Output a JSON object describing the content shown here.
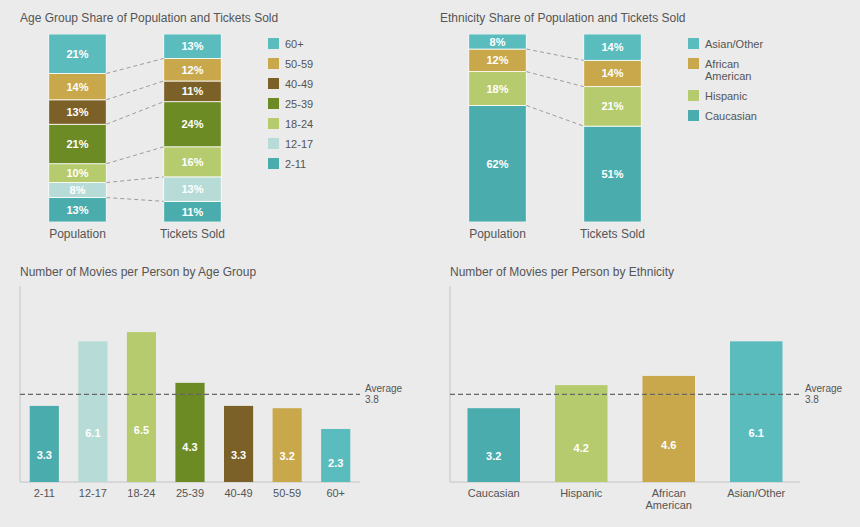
{
  "chart_data": [
    {
      "type": "bar",
      "stacked": true,
      "title": "Age Group Share of Population and Tickets Sold",
      "categories": [
        "Population",
        "Tickets Sold"
      ],
      "series": [
        {
          "name": "60+",
          "color": "#5bbcbe",
          "values": [
            21,
            13
          ],
          "value_labels": [
            "21%",
            "13%"
          ]
        },
        {
          "name": "50-59",
          "color": "#c8a84b",
          "values": [
            14,
            12
          ],
          "value_labels": [
            "14%",
            "12%"
          ]
        },
        {
          "name": "40-49",
          "color": "#7b6128",
          "values": [
            13,
            11
          ],
          "value_labels": [
            "13%",
            "11%"
          ]
        },
        {
          "name": "25-39",
          "color": "#6d8b25",
          "values": [
            21,
            24
          ],
          "value_labels": [
            "21%",
            "24%"
          ]
        },
        {
          "name": "18-24",
          "color": "#b5cb6d",
          "values": [
            10,
            16
          ],
          "value_labels": [
            "10%",
            "16%"
          ]
        },
        {
          "name": "12-17",
          "color": "#b7dbd6",
          "values": [
            8,
            13
          ],
          "value_labels": [
            "8%",
            "13%"
          ]
        },
        {
          "name": "2-11",
          "color": "#4aacac",
          "values": [
            13,
            11
          ],
          "value_labels": [
            "13%",
            "11%"
          ]
        }
      ],
      "ylim": [
        0,
        100
      ],
      "data_labels": true,
      "tick_labels": "x",
      "legend": "right",
      "grid": false
    },
    {
      "type": "bar",
      "stacked": true,
      "title": "Ethnicity Share of Population and Tickets Sold",
      "categories": [
        "Population",
        "Tickets Sold"
      ],
      "series": [
        {
          "name": "Asian/Other",
          "color": "#5bbcbe",
          "values": [
            8,
            14
          ],
          "value_labels": [
            "8%",
            "14%"
          ]
        },
        {
          "name": "African\nAmerican",
          "color": "#c8a84b",
          "values": [
            12,
            14
          ],
          "value_labels": [
            "12%",
            "14%"
          ]
        },
        {
          "name": "Hispanic",
          "color": "#b5cb6d",
          "values": [
            18,
            21
          ],
          "value_labels": [
            "18%",
            "21%"
          ]
        },
        {
          "name": "Caucasian",
          "color": "#4aacac",
          "values": [
            62,
            51
          ],
          "value_labels": [
            "62%",
            "51%"
          ]
        }
      ],
      "ylim": [
        0,
        100
      ],
      "data_labels": true,
      "tick_labels": "x",
      "legend": "right",
      "grid": false
    },
    {
      "type": "bar",
      "title": "Number of  Movies per Person by Age Group",
      "categories": [
        "2-11",
        "12-17",
        "18-24",
        "25-39",
        "40-49",
        "50-59",
        "60+"
      ],
      "values": [
        3.3,
        6.1,
        6.5,
        4.3,
        3.3,
        3.2,
        2.3
      ],
      "colors": [
        "#4aacac",
        "#b7dbd6",
        "#b5cb6d",
        "#6d8b25",
        "#7b6128",
        "#c8a84b",
        "#5bbcbe"
      ],
      "average": {
        "value": 3.8,
        "label": "Average\n3.8"
      },
      "ylim": [
        0,
        8.5
      ],
      "data_labels": true,
      "tick_labels": "x",
      "grid": false
    },
    {
      "type": "bar",
      "title": "Number of Movies per Person by Ethnicity",
      "categories": [
        "Caucasian",
        "Hispanic",
        "African\nAmerican",
        "Asian/Other"
      ],
      "values": [
        3.2,
        4.2,
        4.6,
        6.1
      ],
      "colors": [
        "#4aacac",
        "#b5cb6d",
        "#c8a84b",
        "#5bbcbe"
      ],
      "average": {
        "value": 3.8,
        "label": "Average\n3.8"
      },
      "ylim": [
        0,
        8.5
      ],
      "data_labels": true,
      "tick_labels": "x",
      "grid": false
    }
  ]
}
